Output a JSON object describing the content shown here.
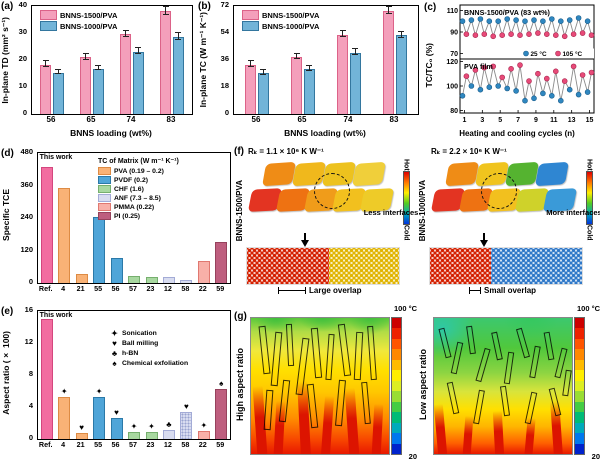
{
  "panels": {
    "a": {
      "tag": "(a)"
    },
    "b": {
      "tag": "(b)"
    },
    "c": {
      "tag": "(c)"
    },
    "d": {
      "tag": "(d)"
    },
    "e": {
      "tag": "(e)"
    },
    "f": {
      "tag": "(f)",
      "left": {
        "r_value": "Rₖ = 1.1 × 10⁶ K W⁻¹",
        "side_label": "BNNS-1500/PVA",
        "interface_note": "Less interfaces",
        "overlap_note": "Large overlap"
      },
      "right": {
        "r_value": "Rₖ = 2.2 × 10⁶ K W⁻¹",
        "side_label": "BNNS-1000/PVA",
        "interface_note": "More interfaces",
        "overlap_note": "Small overlap"
      },
      "colorbar": {
        "top": "Hot",
        "bottom": "Cold"
      }
    },
    "g": {
      "tag": "(g)",
      "left_label": "High aspect ratio",
      "right_label": "Low aspect ratio",
      "colorbar_top": "100 °C",
      "colorbar_bottom": "20"
    }
  },
  "chart_data": [
    {
      "panel": "a",
      "type": "bar",
      "title": "",
      "categories": [
        "56",
        "65",
        "74",
        "83"
      ],
      "series": [
        {
          "name": "BNNS-1500/PVA",
          "color": "#F49FBB",
          "border": "#DC6288",
          "values": [
            18.2,
            21.0,
            29.5,
            38.0
          ],
          "errors": [
            0.9,
            0.9,
            1.0,
            1.2
          ]
        },
        {
          "name": "BNNS-1000/PVA",
          "color": "#72B4D8",
          "border": "#33769E",
          "values": [
            15.3,
            16.8,
            23.0,
            28.5
          ],
          "errors": [
            0.6,
            0.6,
            0.9,
            1.0
          ]
        }
      ],
      "xlabel": "BNNS loading (wt%)",
      "ylabel": "In-plane TD (mm² s⁻¹)",
      "ylim": [
        0,
        40
      ],
      "yticks": [
        0,
        10,
        20,
        30,
        40
      ],
      "grid": false,
      "legend_position": "top-left"
    },
    {
      "panel": "b",
      "type": "bar",
      "title": "",
      "categories": [
        "56",
        "65",
        "74",
        "83"
      ],
      "series": [
        {
          "name": "BNNS-1500/PVA",
          "color": "#F49FBB",
          "border": "#DC6288",
          "values": [
            33,
            38,
            53,
            69
          ],
          "errors": [
            1.5,
            1.3,
            1.5,
            2.0
          ]
        },
        {
          "name": "BNNS-1000/PVA",
          "color": "#72B4D8",
          "border": "#33769E",
          "values": [
            27.5,
            30,
            41,
            52.5
          ],
          "errors": [
            1.2,
            1.2,
            1.5,
            1.5
          ]
        }
      ],
      "xlabel": "BNNS loading (wt%)",
      "ylabel": "In-plane TC (W m⁻¹ K⁻¹)",
      "ylim": [
        0,
        72
      ],
      "yticks": [
        0,
        18,
        36,
        54,
        72
      ],
      "grid": false,
      "legend_position": "top-left"
    },
    {
      "panel": "c",
      "type": "scatter-line",
      "xlabel": "Heating and cooling cycles (n)",
      "ylabel": "TC/TC₀ (%)",
      "xticks": [
        1,
        3,
        5,
        7,
        9,
        11,
        13,
        15
      ],
      "legend": [
        {
          "label": "25 °C",
          "color": "#2F87C0"
        },
        {
          "label": "105 °C",
          "color": "#E84A78"
        }
      ],
      "subplots": [
        {
          "title": "BNNS-1500/PVA (83 wt%)",
          "ylim": [
            65,
            115
          ],
          "yticks": [
            70,
            90,
            110
          ],
          "cold": [
            100,
            101,
            102,
            100,
            100,
            102,
            101,
            100,
            101,
            100,
            102,
            100,
            101,
            103,
            100
          ],
          "hot": [
            88,
            87,
            88,
            86,
            87,
            88,
            87,
            88,
            89,
            88,
            87,
            86,
            88,
            89,
            87
          ]
        },
        {
          "title": "PVA film",
          "ylim": [
            78,
            122
          ],
          "yticks": [
            80,
            100,
            120
          ],
          "cold": [
            92,
            100,
            97,
            99,
            100,
            98,
            96,
            88,
            90,
            94,
            92,
            88,
            97,
            93,
            95
          ],
          "hot": [
            108,
            113,
            115,
            116,
            107,
            114,
            117,
            104,
            110,
            106,
            112,
            104,
            116,
            109,
            111
          ]
        }
      ]
    },
    {
      "panel": "d",
      "type": "bar",
      "annotation": "This work",
      "categories": [
        "Ref.",
        "4",
        "21",
        "55",
        "56",
        "57",
        "23",
        "12",
        "58",
        "22",
        "59"
      ],
      "values": [
        430,
        350,
        33,
        243,
        94,
        25,
        24,
        22,
        12,
        80,
        150
      ],
      "bar_colors": [
        "#F26DA0",
        "#F9B276",
        "#F9B276",
        "#4FA5D8",
        "#4FA5D8",
        "#A8D8A0",
        "#A8D8A0",
        "#D8DCF0",
        "#D8DCF0",
        "#F8B0A8",
        "#BE5E7E"
      ],
      "bar_borders": [
        "#D4467E",
        "#DD8B44",
        "#DD8B44",
        "#2B79A8",
        "#2B79A8",
        "#76AF6E",
        "#76AF6E",
        "#A3ABD6",
        "#A3ABD6",
        "#E07870",
        "#96425C"
      ],
      "ylabel": "Specific TCE",
      "ylim": [
        0,
        480
      ],
      "yticks": [
        0,
        120,
        240,
        360,
        480
      ],
      "legend_title": "TC of Matrix (W m⁻¹ K⁻¹)",
      "legend": [
        {
          "label": "PVA (0.19 – 0.2)",
          "color": "#F9B276",
          "border": "#DD8B44"
        },
        {
          "label": "PVDF (0.2)",
          "color": "#4FA5D8",
          "border": "#2B79A8"
        },
        {
          "label": "CHF (1.6)",
          "color": "#A8D8A0",
          "border": "#76AF6E"
        },
        {
          "label": "ANF (7.3 – 8.5)",
          "color": "#D8DCF0",
          "border": "#A3ABD6"
        },
        {
          "label": "PMMA (0.22)",
          "color": "#F8B0A8",
          "border": "#E07870"
        },
        {
          "label": "PI (0.25)",
          "color": "#BE5E7E",
          "border": "#96425C"
        }
      ]
    },
    {
      "panel": "e",
      "type": "bar",
      "annotation": "This work",
      "categories": [
        "Ref.",
        "4",
        "21",
        "55",
        "56",
        "57",
        "23",
        "12",
        "58",
        "22",
        "59"
      ],
      "values": [
        15,
        5.2,
        0.7,
        5.2,
        2.6,
        0.9,
        0.9,
        1.1,
        3.4,
        1.0,
        6.2
      ],
      "bar_colors": [
        "#F26DA0",
        "#F9B276",
        "#F9B276",
        "#4FA5D8",
        "#4FA5D8",
        "#A8D8A0",
        "#A8D8A0",
        "#D8DCF0",
        "#D8DCF0",
        "#F8B0A8",
        "#BE5E7E"
      ],
      "bar_borders": [
        "#D4467E",
        "#DD8B44",
        "#DD8B44",
        "#2B79A8",
        "#2B79A8",
        "#76AF6E",
        "#76AF6E",
        "#A3ABD6",
        "#A3ABD6",
        "#E07870",
        "#96425C"
      ],
      "markers": [
        "",
        "✦",
        "♥",
        "✦",
        "♥",
        "✦",
        "✦",
        "♣",
        "♥",
        "✦",
        "♠"
      ],
      "hatch_index": 8,
      "ylabel": "Aspect ratio (× 100)",
      "ylim": [
        0,
        16
      ],
      "yticks": [
        0,
        4,
        8,
        12,
        16
      ],
      "legend": [
        {
          "symbol": "✦",
          "label": "Sonication"
        },
        {
          "symbol": "♥",
          "label": "Ball milling"
        },
        {
          "symbol": "♣",
          "label": "h-BN"
        },
        {
          "symbol": "♠",
          "label": "Chemical exfoliation"
        }
      ]
    }
  ]
}
